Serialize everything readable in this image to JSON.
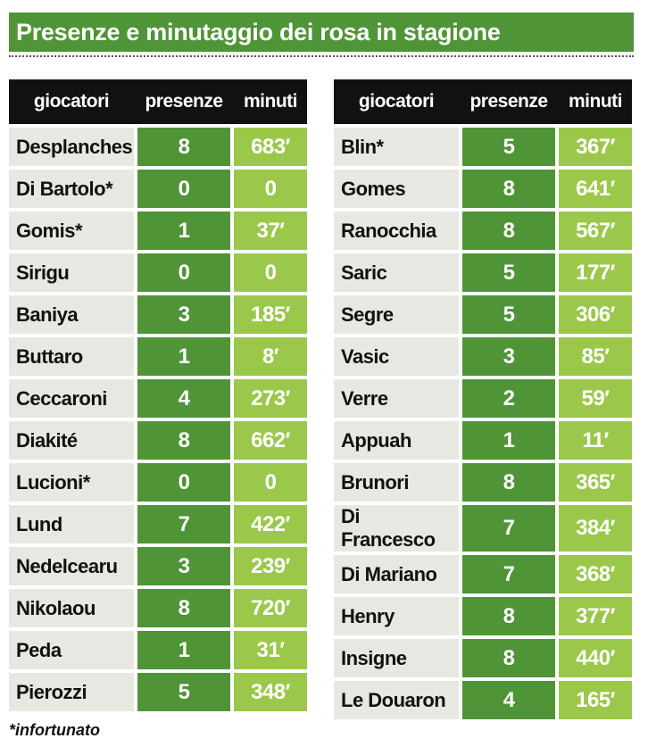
{
  "title": "Presenze e minutaggio dei rosa in stagione",
  "headers": {
    "name": "giocatori",
    "presenze": "presenze",
    "minuti": "minuti"
  },
  "colors": {
    "title_bg": "#4f9437",
    "header_bg": "#111111",
    "name_bg": "#e8e8e3",
    "presenze_bg": "#4f9437",
    "minuti_bg": "#9bc84a"
  },
  "left_table": [
    {
      "name": "Desplanches",
      "presenze": "8",
      "minuti": "683′"
    },
    {
      "name": "Di Bartolo*",
      "presenze": "0",
      "minuti": "0"
    },
    {
      "name": "Gomis*",
      "presenze": "1",
      "minuti": "37′"
    },
    {
      "name": "Sirigu",
      "presenze": "0",
      "minuti": "0"
    },
    {
      "name": "Baniya",
      "presenze": "3",
      "minuti": "185′"
    },
    {
      "name": "Buttaro",
      "presenze": "1",
      "minuti": "8′"
    },
    {
      "name": "Ceccaroni",
      "presenze": "4",
      "minuti": "273′"
    },
    {
      "name": "Diakité",
      "presenze": "8",
      "minuti": "662′"
    },
    {
      "name": "Lucioni*",
      "presenze": "0",
      "minuti": "0"
    },
    {
      "name": "Lund",
      "presenze": "7",
      "minuti": "422′"
    },
    {
      "name": "Nedelcearu",
      "presenze": "3",
      "minuti": "239′"
    },
    {
      "name": "Nikolaou",
      "presenze": "8",
      "minuti": "720′"
    },
    {
      "name": "Peda",
      "presenze": "1",
      "minuti": "31′"
    },
    {
      "name": "Pierozzi",
      "presenze": "5",
      "minuti": "348′"
    }
  ],
  "right_table": [
    {
      "name": "Blin*",
      "presenze": "5",
      "minuti": "367′"
    },
    {
      "name": "Gomes",
      "presenze": "8",
      "minuti": "641′"
    },
    {
      "name": "Ranocchia",
      "presenze": "8",
      "minuti": "567′"
    },
    {
      "name": "Saric",
      "presenze": "5",
      "minuti": "177′"
    },
    {
      "name": "Segre",
      "presenze": "5",
      "minuti": "306′"
    },
    {
      "name": "Vasic",
      "presenze": "3",
      "minuti": "85′"
    },
    {
      "name": "Verre",
      "presenze": "2",
      "minuti": "59′"
    },
    {
      "name": "Appuah",
      "presenze": "1",
      "minuti": "11′"
    },
    {
      "name": "Brunori",
      "presenze": "8",
      "minuti": "365′"
    },
    {
      "name": "Di Francesco",
      "presenze": "7",
      "minuti": "384′"
    },
    {
      "name": "Di Mariano",
      "presenze": "7",
      "minuti": "368′"
    },
    {
      "name": "Henry",
      "presenze": "8",
      "minuti": "377′"
    },
    {
      "name": "Insigne",
      "presenze": "8",
      "minuti": "440′"
    },
    {
      "name": "Le Douaron",
      "presenze": "4",
      "minuti": "165′"
    }
  ],
  "footnote": "*infortunato"
}
